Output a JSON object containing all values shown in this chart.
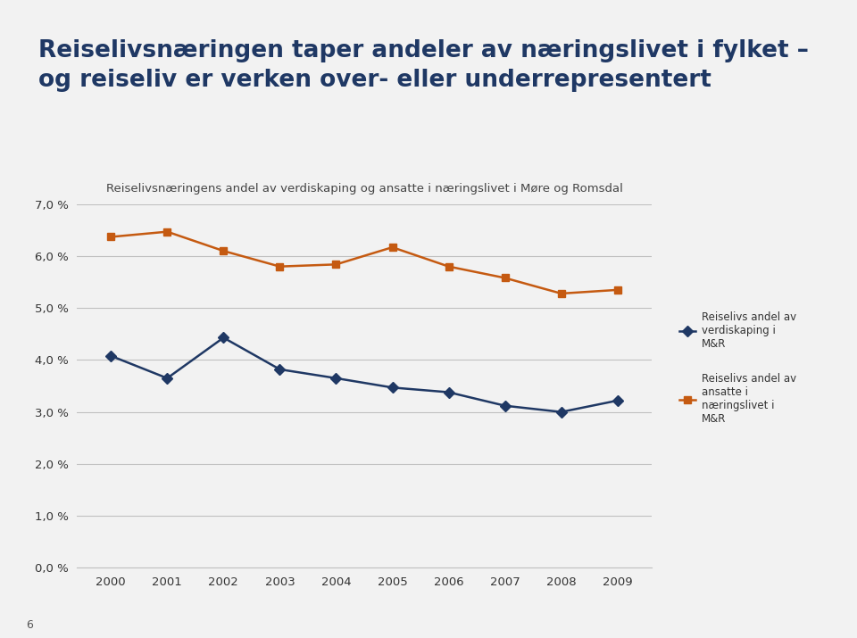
{
  "title_line1": "Reiselivsnæringen taper andeler av næringslivet i fylket –",
  "title_line2": "og reiseliv er verken over- eller underrepresentert",
  "subtitle": "Reiselivsnæringens andel av verdiskaping og ansatte i næringslivet i Møre og Romsdal",
  "years": [
    2000,
    2001,
    2002,
    2003,
    2004,
    2005,
    2006,
    2007,
    2008,
    2009
  ],
  "verdiskaping": [
    4.08,
    3.65,
    4.43,
    3.82,
    3.65,
    3.47,
    3.38,
    3.12,
    3.0,
    3.22
  ],
  "ansatte": [
    6.37,
    6.47,
    6.1,
    5.8,
    5.84,
    6.17,
    5.8,
    5.58,
    5.28,
    5.35
  ],
  "verdiskaping_color": "#1F3864",
  "ansatte_color": "#C55A11",
  "legend_verdiskaping": "Reiselivs andel av\nverdiskaping i\nM&R",
  "legend_ansatte": "Reiselivs andel av\nansatte i\nnæringslivet i\nM&R",
  "title_color": "#1F3864",
  "title_fontsize": 19,
  "subtitle_fontsize": 9.5,
  "bg_light": "#F2F2F2",
  "bg_title": "#E0E0E0",
  "bg_white": "#FFFFFF",
  "ylim": [
    0.0,
    7.0
  ],
  "yticks": [
    0.0,
    1.0,
    2.0,
    3.0,
    4.0,
    5.0,
    6.0,
    7.0
  ],
  "ytick_labels": [
    "0,0 %",
    "1,0 %",
    "2,0 %",
    "3,0 %",
    "4,0 %",
    "5,0 %",
    "6,0 %",
    "7,0 %"
  ],
  "grid_color": "#C0C0C0",
  "footnote": "6"
}
